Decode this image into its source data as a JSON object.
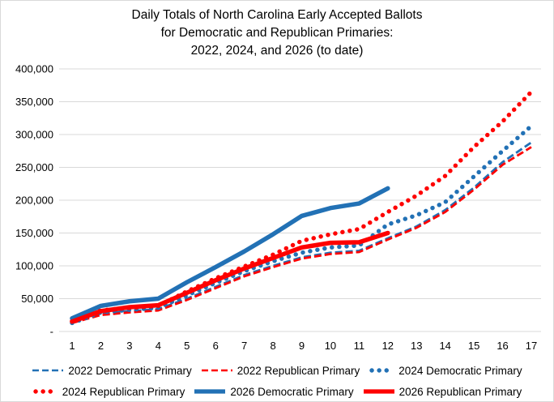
{
  "title_lines": [
    "Daily Totals of North Carolina Early Accepted Ballots",
    "for Democratic and Republican Primaries:",
    "2022, 2024, and 2026 (to date)"
  ],
  "colors": {
    "democratic_blue": "#2271b5",
    "republican_red": "#fe0000",
    "gridline": "#d9d9d9",
    "axis_text": "#000000",
    "background": "#ffffff"
  },
  "chart_data": {
    "type": "line",
    "title": "Daily Totals of North Carolina Early Accepted Ballots for Democratic and Republican Primaries: 2022, 2024, and 2026 (to date)",
    "xlabel": "",
    "ylabel": "",
    "x": [
      1,
      2,
      3,
      4,
      5,
      6,
      7,
      8,
      9,
      10,
      11,
      12,
      13,
      14,
      15,
      16,
      17
    ],
    "x_tick_labels": [
      "1",
      "2",
      "3",
      "4",
      "5",
      "6",
      "7",
      "8",
      "9",
      "10",
      "11",
      "12",
      "13",
      "14",
      "15",
      "16",
      "17"
    ],
    "ylim": [
      0,
      400000
    ],
    "y_tick_step": 50000,
    "y_tick_labels": [
      "400,000",
      "350,000",
      "300,000",
      "250,000",
      "200,000",
      "150,000",
      "100,000",
      "50,000",
      "-"
    ],
    "grid": "horizontal",
    "legend_position": "bottom",
    "series": [
      {
        "name": "2022 Democratic Primary",
        "style": "dashed",
        "color": "#2271b5",
        "values": [
          15000,
          27000,
          31000,
          34000,
          50000,
          68000,
          86000,
          100000,
          113000,
          120000,
          123000,
          142000,
          160000,
          185000,
          219000,
          258000,
          288000
        ]
      },
      {
        "name": "2022 Republican Primary",
        "style": "dashed",
        "color": "#fe0000",
        "values": [
          13000,
          25000,
          29000,
          32000,
          48000,
          66000,
          84000,
          98000,
          111000,
          118000,
          121000,
          140000,
          158000,
          182000,
          216000,
          254000,
          281000
        ]
      },
      {
        "name": "2024 Democratic Primary",
        "style": "dotted",
        "color": "#2271b5",
        "values": [
          13000,
          29000,
          33000,
          36000,
          55000,
          74000,
          92000,
          107000,
          120000,
          128000,
          131000,
          163000,
          177000,
          197000,
          236000,
          275000,
          313000
        ]
      },
      {
        "name": "2024 Republican Primary",
        "style": "dotted",
        "color": "#fe0000",
        "values": [
          16000,
          32000,
          36000,
          39000,
          61000,
          81000,
          99000,
          117000,
          138000,
          148000,
          156000,
          182000,
          207000,
          237000,
          281000,
          320000,
          365000
        ]
      },
      {
        "name": "2026 Democratic Primary",
        "style": "solid",
        "color": "#2271b5",
        "values": [
          20000,
          39000,
          46000,
          50000,
          75000,
          98000,
          122000,
          148000,
          176000,
          188000,
          195000,
          218000
        ]
      },
      {
        "name": "2026 Republican Primary",
        "style": "solid",
        "color": "#fe0000",
        "values": [
          15000,
          31000,
          37000,
          40000,
          59000,
          78000,
          96000,
          112000,
          128000,
          135000,
          136000,
          150000
        ]
      }
    ]
  }
}
